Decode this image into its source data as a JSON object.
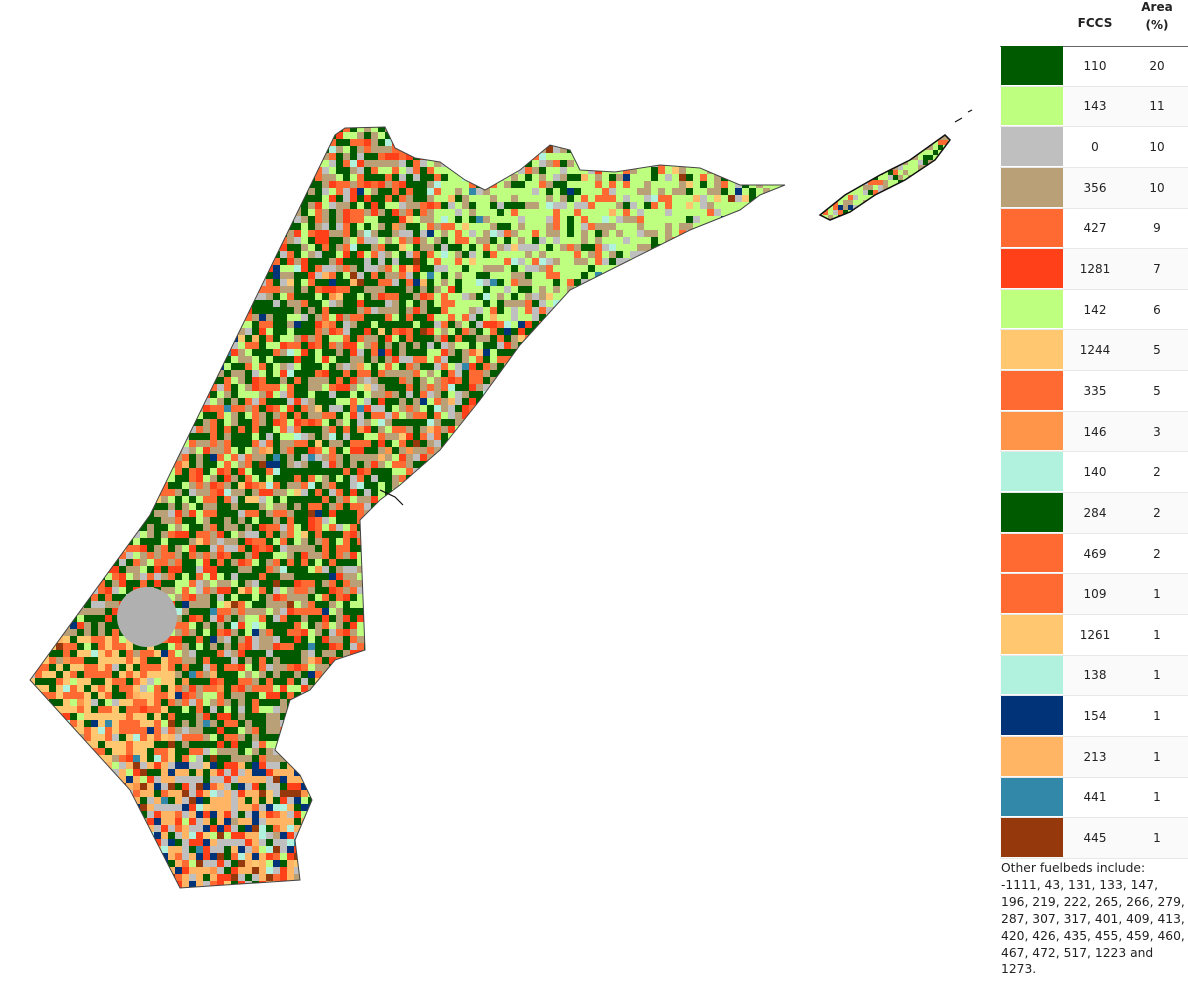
{
  "legend": {
    "col_fccs": "FCCS",
    "col_area_line1": "Area",
    "col_area_line2": "(%)",
    "rows": [
      {
        "code": "110",
        "area": "20",
        "color": "#005a00"
      },
      {
        "code": "143",
        "area": "11",
        "color": "#bfff80"
      },
      {
        "code": "0",
        "area": "10",
        "color": "#bfbfbf"
      },
      {
        "code": "356",
        "area": "10",
        "color": "#b9a077"
      },
      {
        "code": "427",
        "area": "9",
        "color": "#ff6a33"
      },
      {
        "code": "1281",
        "area": "7",
        "color": "#ff4019"
      },
      {
        "code": "142",
        "area": "6",
        "color": "#bfff80"
      },
      {
        "code": "1244",
        "area": "5",
        "color": "#ffc870"
      },
      {
        "code": "335",
        "area": "5",
        "color": "#ff6a33"
      },
      {
        "code": "146",
        "area": "3",
        "color": "#ff9548"
      },
      {
        "code": "140",
        "area": "2",
        "color": "#b0f2de"
      },
      {
        "code": "284",
        "area": "2",
        "color": "#005a00"
      },
      {
        "code": "469",
        "area": "2",
        "color": "#ff6a33"
      },
      {
        "code": "109",
        "area": "1",
        "color": "#ff6a33"
      },
      {
        "code": "1261",
        "area": "1",
        "color": "#ffc870"
      },
      {
        "code": "138",
        "area": "1",
        "color": "#b0f2de"
      },
      {
        "code": "154",
        "area": "1",
        "color": "#003378"
      },
      {
        "code": "213",
        "area": "1",
        "color": "#ffb564"
      },
      {
        "code": "441",
        "area": "1",
        "color": "#3288a8"
      },
      {
        "code": "445",
        "area": "1",
        "color": "#95380b"
      }
    ],
    "note": "Other fuelbeds include: -1111, 43, 131, 133, 147, 196, 219, 222, 265, 266, 279, 287, 307, 317, 401, 409, 413, 420, 426, 435, 455, 459, 460, 467, 472, 517, 1223 and 1273."
  }
}
